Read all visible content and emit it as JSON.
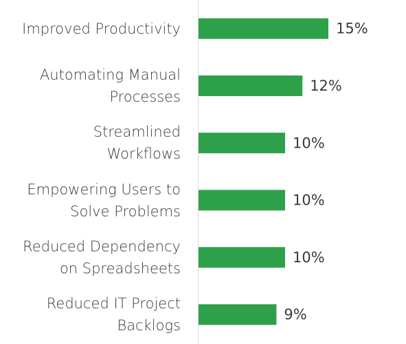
{
  "chart_data": {
    "type": "barh",
    "categories": [
      "Improved Productivity",
      "Automating Manual\nProcesses",
      "Streamlined\nWorkflows",
      "Empowering Users to\nSolve Problems",
      "Reduced Dependency\non Spreadsheets",
      "Reduced IT Project\nBacklogs"
    ],
    "values": [
      15,
      12,
      10,
      10,
      10,
      9
    ],
    "value_labels": [
      "15%",
      "12%",
      "10%",
      "10%",
      "10%",
      "9%"
    ],
    "color": "#2ea04a"
  }
}
